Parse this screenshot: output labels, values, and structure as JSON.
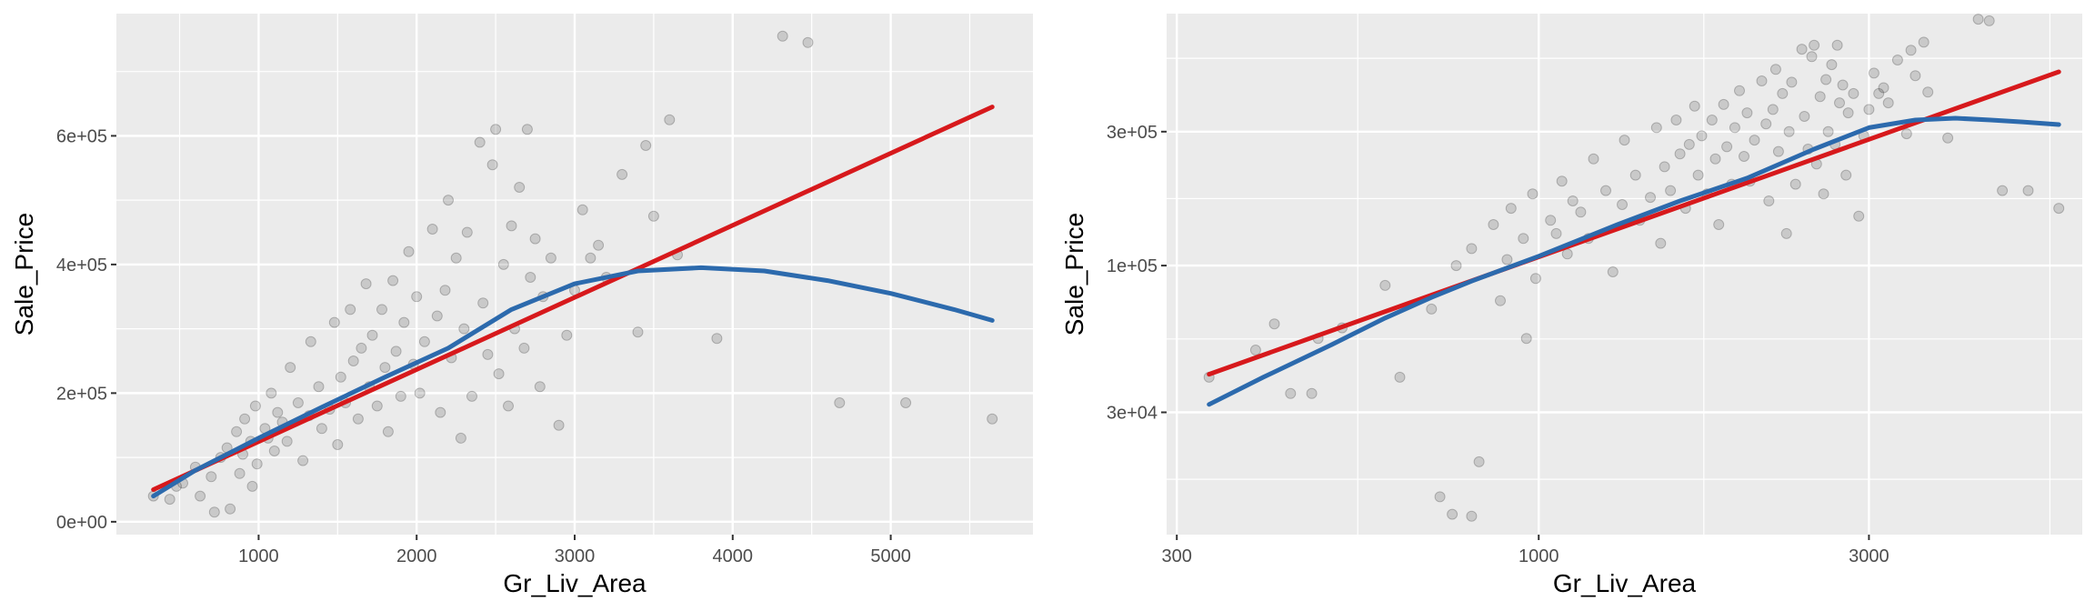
{
  "chart_data": [
    {
      "type": "scatter",
      "title": "",
      "xlabel": "Gr_Liv_Area",
      "ylabel": "Sale_Price",
      "x_scale": "linear",
      "y_scale": "linear",
      "xlim": [
        100,
        5900
      ],
      "ylim": [
        -20000,
        790000
      ],
      "x_ticks": [
        1000,
        2000,
        3000,
        4000,
        5000
      ],
      "x_tick_labels": [
        "1000",
        "2000",
        "3000",
        "4000",
        "5000"
      ],
      "y_ticks": [
        0,
        200000,
        400000,
        600000
      ],
      "y_tick_labels": [
        "0e+00",
        "2e+05",
        "4e+05",
        "6e+05"
      ],
      "grid": true,
      "series": [
        {
          "type": "scatter",
          "x": [
            334,
            438,
            480,
            520,
            600,
            630,
            700,
            720,
            760,
            800,
            820,
            860,
            880,
            900,
            912,
            950,
            960,
            980,
            990,
            1040,
            1060,
            1080,
            1100,
            1120,
            1150,
            1180,
            1200,
            1250,
            1280,
            1320,
            1330,
            1380,
            1400,
            1450,
            1480,
            1500,
            1520,
            1550,
            1580,
            1600,
            1630,
            1650,
            1680,
            1700,
            1720,
            1750,
            1780,
            1800,
            1820,
            1850,
            1870,
            1900,
            1920,
            1950,
            1980,
            2000,
            2020,
            2050,
            2100,
            2130,
            2150,
            2180,
            2200,
            2220,
            2250,
            2280,
            2300,
            2320,
            2350,
            2400,
            2420,
            2450,
            2480,
            2500,
            2520,
            2550,
            2580,
            2600,
            2620,
            2650,
            2680,
            2700,
            2720,
            2750,
            2780,
            2800,
            2850,
            2900,
            2950,
            3000,
            3050,
            3100,
            3150,
            3200,
            3300,
            3400,
            3450,
            3500,
            3600,
            3650,
            3900,
            4316,
            4476,
            4676,
            5095,
            5642
          ],
          "y": [
            40000,
            35000,
            55000,
            60000,
            85000,
            40000,
            70000,
            15000,
            100000,
            115000,
            20000,
            140000,
            75000,
            105000,
            160000,
            125000,
            55000,
            180000,
            90000,
            145000,
            130000,
            200000,
            110000,
            170000,
            155000,
            125000,
            240000,
            185000,
            95000,
            165000,
            280000,
            210000,
            145000,
            175000,
            310000,
            120000,
            225000,
            185000,
            330000,
            250000,
            160000,
            270000,
            370000,
            210000,
            290000,
            180000,
            330000,
            240000,
            140000,
            375000,
            265000,
            195000,
            310000,
            420000,
            245000,
            350000,
            200000,
            280000,
            455000,
            320000,
            170000,
            360000,
            500000,
            255000,
            410000,
            130000,
            300000,
            450000,
            195000,
            590000,
            340000,
            260000,
            555000,
            610000,
            230000,
            400000,
            180000,
            460000,
            300000,
            520000,
            270000,
            610000,
            380000,
            440000,
            210000,
            350000,
            410000,
            150000,
            290000,
            360000,
            485000,
            410000,
            430000,
            380000,
            540000,
            295000,
            585000,
            475000,
            625000,
            415000,
            285000,
            755000,
            745000,
            185000,
            185000,
            160000
          ]
        },
        {
          "name": "",
          "type": "line",
          "color": "#d7191c",
          "x": [
            334,
            5642
          ],
          "y": [
            50000,
            645000
          ]
        },
        {
          "name": "",
          "type": "line",
          "color": "#2c6aad",
          "x": [
            334,
            600,
            1000,
            1400,
            1800,
            2200,
            2600,
            3000,
            3400,
            3800,
            4200,
            4600,
            5000,
            5400,
            5642
          ],
          "y": [
            40000,
            80000,
            130000,
            178000,
            225000,
            270000,
            330000,
            370000,
            390000,
            395000,
            390000,
            375000,
            355000,
            330000,
            313000
          ]
        }
      ]
    },
    {
      "type": "scatter",
      "title": "",
      "xlabel": "Gr_Liv_Area",
      "ylabel": "Sale_Price",
      "x_scale": "log10",
      "y_scale": "log10",
      "xlim": [
        290,
        6100
      ],
      "ylim": [
        11000,
        790000
      ],
      "x_ticks": [
        300,
        1000,
        3000
      ],
      "x_tick_labels": [
        "300",
        "1000",
        "3000"
      ],
      "y_ticks": [
        30000,
        100000,
        300000
      ],
      "y_tick_labels": [
        "3e+04",
        "1e+05",
        "3e+05"
      ],
      "grid": true,
      "series": [
        {
          "type": "scatter",
          "x": [
            334,
            438,
            480,
            520,
            600,
            630,
            700,
            720,
            760,
            800,
            820,
            860,
            880,
            900,
            912,
            950,
            960,
            980,
            990,
            1040,
            1060,
            1080,
            1100,
            1120,
            1150,
            1180,
            1200,
            1250,
            1280,
            1320,
            1330,
            1380,
            1400,
            1450,
            1480,
            1500,
            1520,
            1550,
            1580,
            1600,
            1630,
            1650,
            1680,
            1700,
            1720,
            1750,
            1780,
            1800,
            1820,
            1850,
            1870,
            1900,
            1920,
            1950,
            1980,
            2000,
            2020,
            2050,
            2100,
            2130,
            2150,
            2180,
            2200,
            2220,
            2250,
            2280,
            2300,
            2320,
            2350,
            2400,
            2420,
            2450,
            2480,
            2500,
            2520,
            2550,
            2580,
            2600,
            2620,
            2650,
            2680,
            2700,
            2720,
            2750,
            2780,
            2800,
            2850,
            2900,
            2950,
            3000,
            3050,
            3100,
            3150,
            3200,
            3300,
            3400,
            3450,
            3500,
            3600,
            3650,
            3900,
            4316,
            4476,
            4676,
            5095,
            5642,
            750,
            800,
            470,
            390,
            415
          ],
          "y": [
            40000,
            35000,
            55000,
            60000,
            85000,
            40000,
            70000,
            15000,
            100000,
            115000,
            20000,
            140000,
            75000,
            105000,
            160000,
            125000,
            55000,
            180000,
            90000,
            145000,
            130000,
            200000,
            110000,
            170000,
            155000,
            125000,
            240000,
            185000,
            95000,
            165000,
            280000,
            210000,
            145000,
            175000,
            310000,
            120000,
            225000,
            185000,
            330000,
            250000,
            160000,
            270000,
            370000,
            210000,
            290000,
            180000,
            330000,
            240000,
            140000,
            375000,
            265000,
            195000,
            310000,
            420000,
            245000,
            350000,
            200000,
            280000,
            455000,
            320000,
            170000,
            360000,
            500000,
            255000,
            410000,
            130000,
            300000,
            450000,
            195000,
            590000,
            340000,
            260000,
            555000,
            610000,
            230000,
            400000,
            180000,
            460000,
            300000,
            520000,
            270000,
            610000,
            380000,
            440000,
            210000,
            350000,
            410000,
            150000,
            290000,
            360000,
            485000,
            410000,
            430000,
            380000,
            540000,
            295000,
            585000,
            475000,
            625000,
            415000,
            285000,
            755000,
            745000,
            185000,
            185000,
            160000,
            13000,
            12800,
            35000,
            50000,
            62000
          ]
        },
        {
          "name": "",
          "type": "line",
          "color": "#d7191c",
          "x": [
            334,
            5642
          ],
          "y": [
            41000,
            490000
          ]
        },
        {
          "name": "",
          "type": "line",
          "color": "#2c6aad",
          "x": [
            334,
            400,
            500,
            600,
            700,
            800,
            1000,
            1300,
            1600,
            2000,
            2500,
            3000,
            3500,
            4000,
            4500,
            5000,
            5642
          ],
          "y": [
            32000,
            40000,
            52000,
            65000,
            77000,
            88000,
            108000,
            140000,
            170000,
            205000,
            260000,
            310000,
            330000,
            335000,
            330000,
            325000,
            318000
          ]
        }
      ]
    }
  ]
}
